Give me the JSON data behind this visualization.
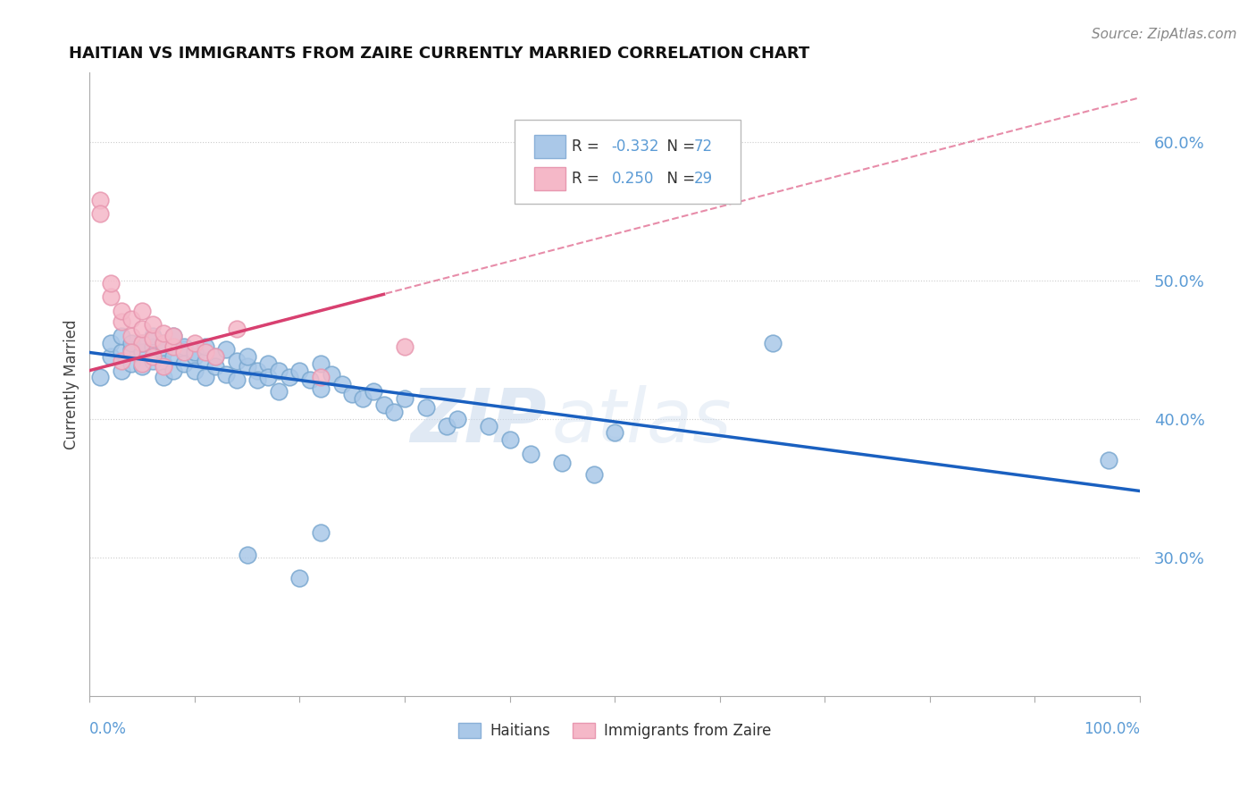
{
  "title": "HAITIAN VS IMMIGRANTS FROM ZAIRE CURRENTLY MARRIED CORRELATION CHART",
  "source": "Source: ZipAtlas.com",
  "ylabel": "Currently Married",
  "watermark_zip": "ZIP",
  "watermark_atlas": "atlas",
  "legend": {
    "series1_label": "Haitians",
    "series2_label": "Immigrants from Zaire",
    "series1_color": "#aac8e8",
    "series2_color": "#f5b8c8",
    "series1_edge": "#8ab0d8",
    "series2_edge": "#e898b0"
  },
  "blue_color": "#aac8e8",
  "blue_edge": "#7aA8d0",
  "pink_color": "#f5b8c8",
  "pink_edge": "#e898b0",
  "blue_line_color": "#1a60c0",
  "pink_line_color": "#d84070",
  "grid_color": "#cccccc",
  "title_color": "#111111",
  "axis_label_color": "#5b9bd5",
  "source_color": "#888888",
  "ylim": [
    0.2,
    0.65
  ],
  "xlim": [
    0.0,
    1.0
  ],
  "yticks": [
    0.3,
    0.4,
    0.5,
    0.6
  ],
  "ytick_labels": [
    "30.0%",
    "40.0%",
    "50.0%",
    "60.0%"
  ],
  "blue_points_x": [
    0.01,
    0.02,
    0.02,
    0.03,
    0.03,
    0.03,
    0.04,
    0.04,
    0.04,
    0.05,
    0.05,
    0.05,
    0.06,
    0.06,
    0.06,
    0.07,
    0.07,
    0.07,
    0.07,
    0.08,
    0.08,
    0.08,
    0.09,
    0.09,
    0.09,
    0.1,
    0.1,
    0.1,
    0.11,
    0.11,
    0.11,
    0.12,
    0.12,
    0.13,
    0.13,
    0.14,
    0.14,
    0.15,
    0.15,
    0.16,
    0.16,
    0.17,
    0.17,
    0.18,
    0.18,
    0.19,
    0.2,
    0.21,
    0.22,
    0.22,
    0.23,
    0.24,
    0.25,
    0.26,
    0.27,
    0.28,
    0.29,
    0.3,
    0.32,
    0.34,
    0.35,
    0.38,
    0.4,
    0.42,
    0.45,
    0.48,
    0.5,
    0.65,
    0.97,
    0.2,
    0.22,
    0.15
  ],
  "blue_points_y": [
    0.43,
    0.445,
    0.455,
    0.448,
    0.435,
    0.46,
    0.45,
    0.44,
    0.455,
    0.448,
    0.438,
    0.455,
    0.452,
    0.442,
    0.46,
    0.448,
    0.44,
    0.43,
    0.455,
    0.445,
    0.435,
    0.46,
    0.45,
    0.44,
    0.452,
    0.445,
    0.435,
    0.448,
    0.442,
    0.452,
    0.43,
    0.445,
    0.438,
    0.45,
    0.432,
    0.442,
    0.428,
    0.438,
    0.445,
    0.435,
    0.428,
    0.44,
    0.43,
    0.435,
    0.42,
    0.43,
    0.435,
    0.428,
    0.44,
    0.422,
    0.432,
    0.425,
    0.418,
    0.415,
    0.42,
    0.41,
    0.405,
    0.415,
    0.408,
    0.395,
    0.4,
    0.395,
    0.385,
    0.375,
    0.368,
    0.36,
    0.39,
    0.455,
    0.37,
    0.285,
    0.318,
    0.302
  ],
  "pink_points_x": [
    0.01,
    0.01,
    0.02,
    0.02,
    0.03,
    0.03,
    0.04,
    0.04,
    0.05,
    0.05,
    0.05,
    0.06,
    0.06,
    0.07,
    0.07,
    0.08,
    0.08,
    0.09,
    0.1,
    0.11,
    0.12,
    0.14,
    0.22,
    0.3,
    0.03,
    0.04,
    0.05,
    0.06,
    0.07
  ],
  "pink_points_y": [
    0.558,
    0.548,
    0.488,
    0.498,
    0.47,
    0.478,
    0.46,
    0.472,
    0.455,
    0.465,
    0.478,
    0.458,
    0.468,
    0.455,
    0.462,
    0.452,
    0.46,
    0.448,
    0.455,
    0.448,
    0.445,
    0.465,
    0.43,
    0.452,
    0.442,
    0.448,
    0.44,
    0.445,
    0.438
  ],
  "blue_trendline": {
    "x_start": 0.0,
    "y_start": 0.448,
    "x_end": 1.0,
    "y_end": 0.348
  },
  "pink_solid_line": {
    "x_start": 0.0,
    "y_start": 0.435,
    "x_end": 0.28,
    "y_end": 0.49
  },
  "pink_dashed_line": {
    "x_start": 0.0,
    "y_start": 0.435,
    "x_end": 1.0,
    "y_end": 0.632
  }
}
